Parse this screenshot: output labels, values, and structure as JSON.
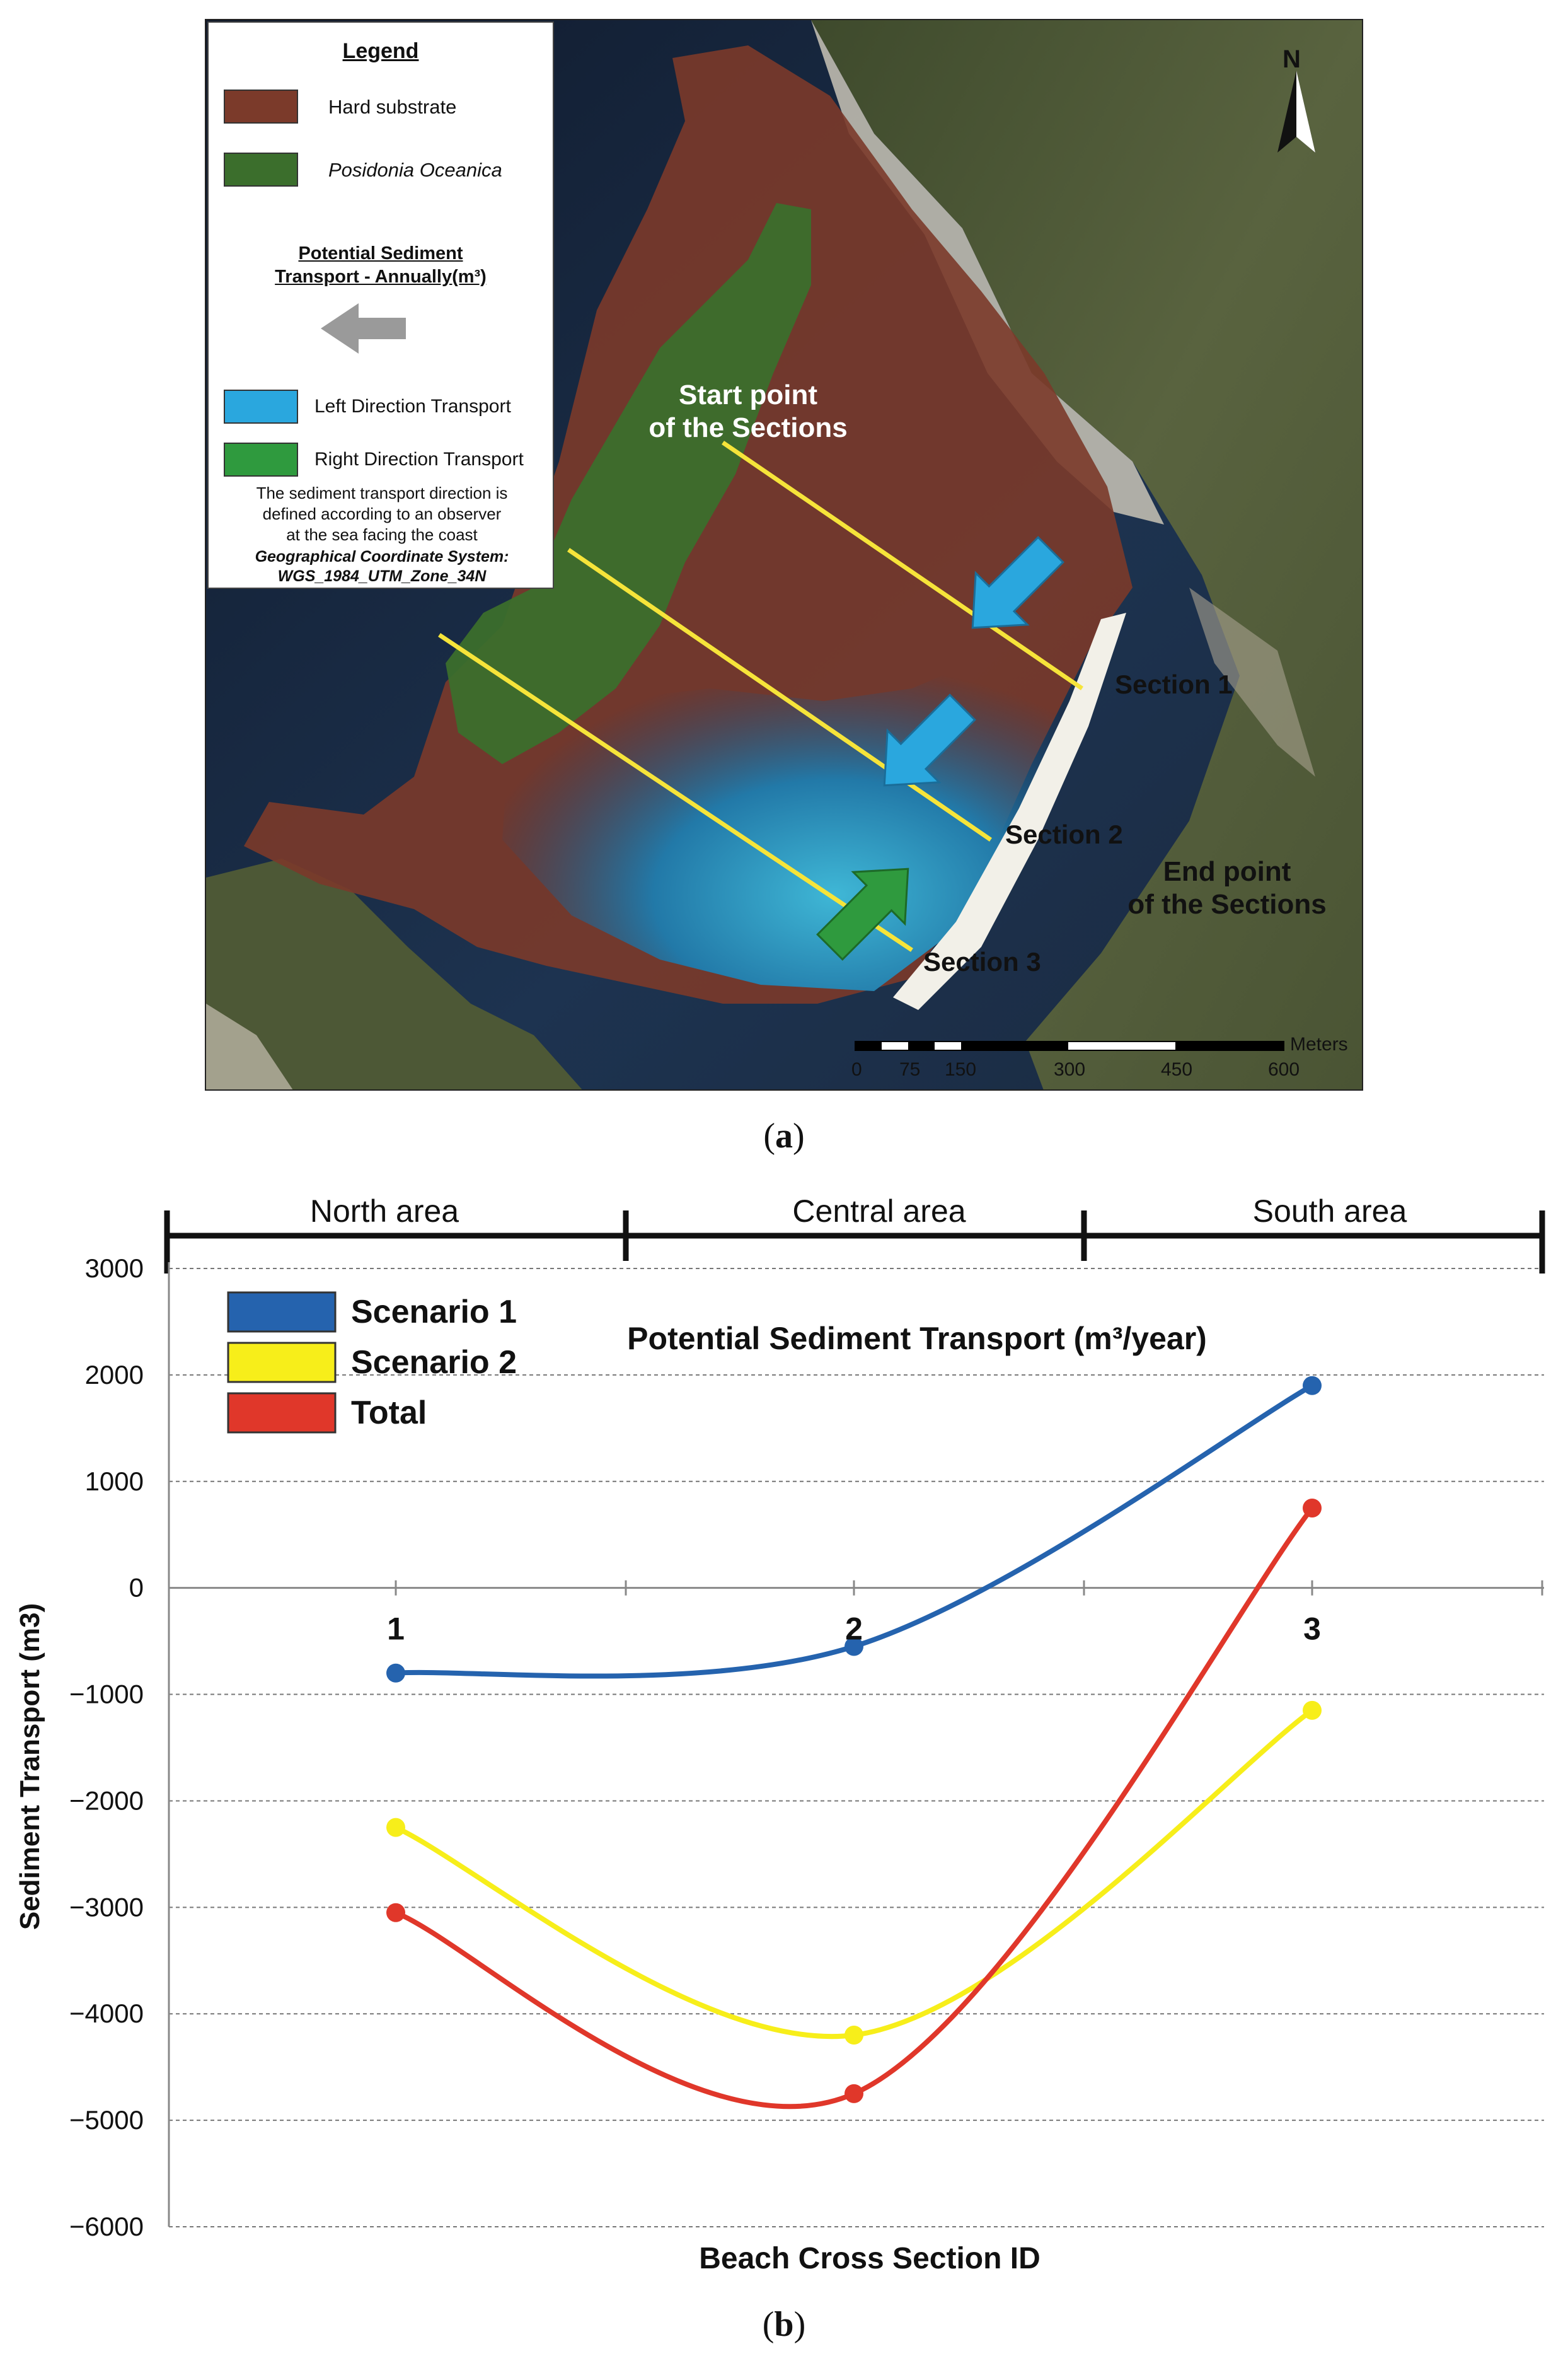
{
  "panel_a": {
    "legend": {
      "title": "Legend",
      "items": [
        {
          "label": "Hard substrate",
          "color": "#7b3a2a"
        },
        {
          "label": "Posidonia Oceanica",
          "color": "#3b6e2c"
        }
      ],
      "transport_title_line1": "Potential Sediment",
      "transport_title_line2": "Transport - Annually(m³)",
      "arrow_icon": "left-arrow-icon",
      "arrow_color": "#9a9a9a",
      "transport_items": [
        {
          "label": "Left Direction Transport",
          "color": "#2aa7de"
        },
        {
          "label": "Right Direction Transport",
          "color": "#2f9a3e"
        }
      ],
      "note_line1": "The sediment transport direction is",
      "note_line2": "defined according to an observer",
      "note_line3": "at the sea facing the coast",
      "coord_line1": "Geographical Coordinate System:",
      "coord_line2": "WGS_1984_UTM_Zone_34N"
    },
    "north_label": "N",
    "start_label_line1": "Start point",
    "start_label_line2": "of the Sections",
    "end_label_line1": "End point",
    "end_label_line2": "of the Sections",
    "sections": [
      "Section 1",
      "Section 2",
      "Section 3"
    ],
    "scale_unit": "Meters",
    "scale_ticks": [
      "0",
      "75",
      "150",
      "300",
      "450",
      "600"
    ],
    "caption": "a"
  },
  "panel_b": {
    "areas": [
      "North area",
      "Central area",
      "South area"
    ],
    "caption": "b"
  },
  "chart_data": {
    "type": "line",
    "title": "Potential Sediment Transport (m³/year)",
    "xlabel": "Beach Cross Section ID",
    "ylabel": "Sediment Transport (m3)",
    "categories": [
      "1",
      "2",
      "3"
    ],
    "ylim": [
      -6000,
      3000
    ],
    "yticks": [
      3000,
      2000,
      1000,
      0,
      -1000,
      -2000,
      -3000,
      -4000,
      -5000,
      -6000
    ],
    "ytick_labels": [
      "3000",
      "2000",
      "1000",
      "0",
      "−1000",
      "−2000",
      "−3000",
      "−4000",
      "−5000",
      "−6000"
    ],
    "grid": "dashed horizontal",
    "legend_position": "top-left",
    "series": [
      {
        "name": "Scenario 1",
        "color": "#2563ae",
        "values": [
          -800,
          -550,
          1900
        ]
      },
      {
        "name": "Scenario 2",
        "color": "#f7ee1a",
        "values": [
          -2250,
          -4200,
          -1150
        ]
      },
      {
        "name": "Total",
        "color": "#e0372a",
        "values": [
          -3050,
          -4750,
          750
        ]
      }
    ]
  }
}
